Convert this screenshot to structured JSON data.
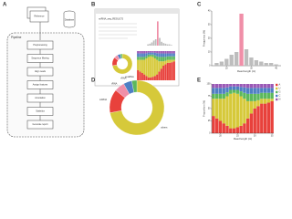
{
  "figure": {
    "panel_labels": [
      "A",
      "B",
      "C",
      "D",
      "E"
    ],
    "flowchart": {
      "inputs": [
        "Input reads",
        "Reference"
      ],
      "database": "Database",
      "pipeline_label": "Pipeline",
      "steps": [
        "Preprocessing",
        "Sequence filtering",
        "Align reads",
        "Assign features",
        "Annotation",
        "Statistics",
        "Generate report"
      ]
    },
    "software": {
      "title": "miRNA_seq_RESULTS"
    }
  },
  "chart_data": [
    {
      "type": "bar",
      "xlabel": "Read length (nt)",
      "ylabel": "Frequency (%)",
      "x": [
        16,
        18,
        20,
        22,
        24,
        26,
        28,
        30,
        32,
        34,
        36,
        38,
        40
      ],
      "values": [
        2,
        3,
        5,
        8,
        10,
        38,
        12,
        6,
        4,
        3,
        2,
        2,
        1
      ],
      "colors": [
        "#bdbdbd",
        "#bdbdbd",
        "#bdbdbd",
        "#bdbdbd",
        "#bdbdbd",
        "#f08fa8",
        "#bdbdbd",
        "#bdbdbd",
        "#bdbdbd",
        "#bdbdbd",
        "#bdbdbd",
        "#bdbdbd",
        "#bdbdbd"
      ],
      "xlim": [
        14,
        42
      ],
      "xticks": [
        20,
        30,
        40
      ],
      "ylim": [
        0,
        40
      ],
      "yticks": [
        0,
        10,
        20,
        30,
        40
      ]
    },
    {
      "type": "pie",
      "categories": [
        "others",
        "miRNA",
        "tRNA",
        "rRNA",
        "snoRNA"
      ],
      "values": [
        72,
        14,
        6,
        5,
        3
      ],
      "colors": [
        "#d6c93a",
        "#e8413c",
        "#f08fa8",
        "#4f7fc4",
        "#5cb85c"
      ]
    },
    {
      "type": "stacked_bar",
      "xlabel": "Read length (nt)",
      "ylabel": "Proportion (%)",
      "x": [
        18,
        19,
        20,
        21,
        22,
        23,
        24,
        25,
        26,
        27,
        28,
        29,
        30,
        31,
        32,
        33,
        34,
        35
      ],
      "xlim": [
        17.5,
        35.5
      ],
      "xticks": [
        20,
        25,
        30,
        35
      ],
      "ylim": [
        0,
        100
      ],
      "yticks": [
        0,
        25,
        50,
        75,
        100
      ],
      "series": [
        {
          "name": "A",
          "color": "#e8413c",
          "values": [
            35,
            30,
            25,
            20,
            15,
            10,
            10,
            12,
            15,
            20,
            30,
            40,
            50,
            55,
            60,
            60,
            62,
            65
          ]
        },
        {
          "name": "U",
          "color": "#d6c93a",
          "values": [
            35,
            40,
            45,
            50,
            60,
            70,
            72,
            68,
            60,
            50,
            35,
            25,
            15,
            12,
            10,
            10,
            8,
            5
          ]
        },
        {
          "name": "G",
          "color": "#5cb85c",
          "values": [
            10,
            10,
            10,
            10,
            8,
            8,
            6,
            8,
            10,
            12,
            15,
            15,
            15,
            13,
            12,
            12,
            12,
            12
          ]
        },
        {
          "name": "C",
          "color": "#4f7fc4",
          "values": [
            12,
            12,
            12,
            12,
            10,
            7,
            7,
            7,
            9,
            11,
            12,
            12,
            12,
            12,
            10,
            10,
            10,
            10
          ]
        },
        {
          "name": "N",
          "color": "#9b59b6",
          "values": [
            8,
            8,
            8,
            8,
            7,
            5,
            5,
            5,
            6,
            7,
            8,
            8,
            8,
            8,
            8,
            8,
            8,
            8
          ]
        }
      ]
    }
  ]
}
